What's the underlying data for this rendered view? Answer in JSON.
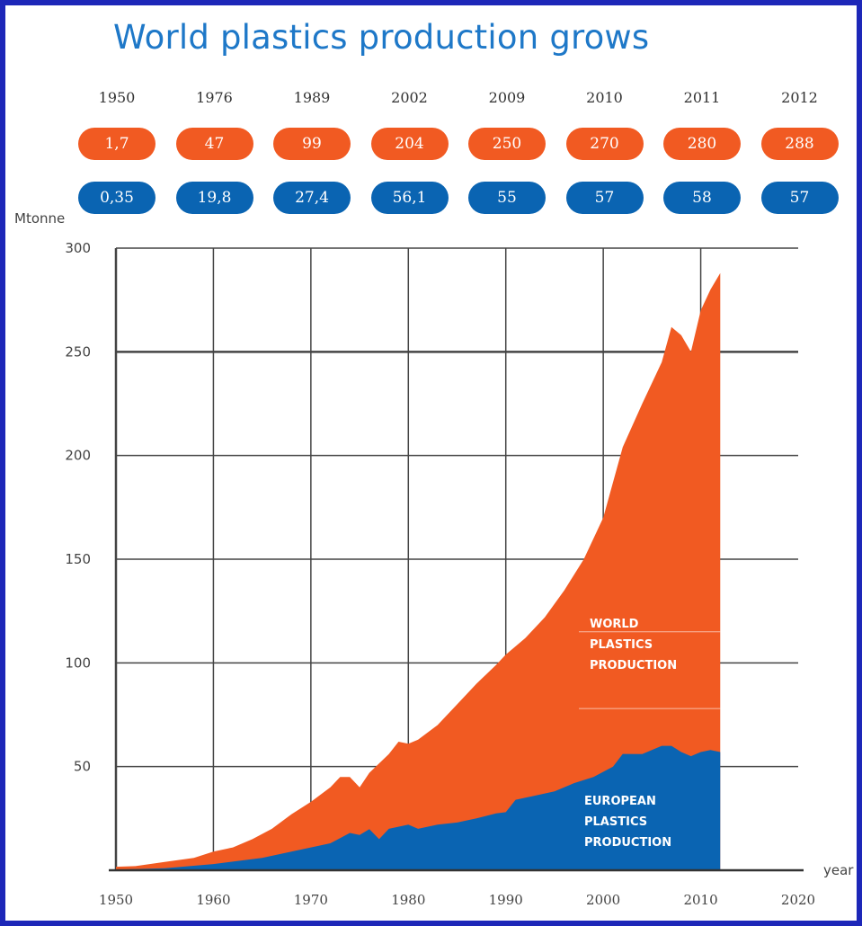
{
  "title": "World plastics production grows",
  "colors": {
    "world": "#f15a22",
    "europe": "#0a64b2",
    "frame": "#1d27b8",
    "title": "#1e78c8"
  },
  "summary": {
    "years": [
      "1950",
      "1976",
      "1989",
      "2002",
      "2009",
      "2010",
      "2011",
      "2012"
    ],
    "world": [
      "1,7",
      "47",
      "99",
      "204",
      "250",
      "270",
      "280",
      "288"
    ],
    "europe": [
      "0,35",
      "19,8",
      "27,4",
      "56,1",
      "55",
      "57",
      "58",
      "57"
    ]
  },
  "chart_data": {
    "type": "area",
    "ylabel": "Mtonne",
    "xlabel": "year",
    "xlim": [
      1950,
      2020
    ],
    "ylim": [
      0,
      300
    ],
    "xticks": [
      1950,
      1960,
      1970,
      1980,
      1990,
      2000,
      2010,
      2020
    ],
    "yticks": [
      50,
      100,
      150,
      200,
      250,
      300
    ],
    "series": [
      {
        "name": "WORLD PLASTICS PRODUCTION",
        "points": [
          [
            1950,
            1.7
          ],
          [
            1952,
            2
          ],
          [
            1955,
            4
          ],
          [
            1958,
            6
          ],
          [
            1960,
            9
          ],
          [
            1962,
            11
          ],
          [
            1964,
            15
          ],
          [
            1966,
            20
          ],
          [
            1968,
            27
          ],
          [
            1970,
            33
          ],
          [
            1972,
            40
          ],
          [
            1973,
            45
          ],
          [
            1974,
            45
          ],
          [
            1975,
            40
          ],
          [
            1976,
            47
          ],
          [
            1978,
            56
          ],
          [
            1979,
            62
          ],
          [
            1980,
            61
          ],
          [
            1981,
            63
          ],
          [
            1983,
            70
          ],
          [
            1985,
            80
          ],
          [
            1987,
            90
          ],
          [
            1989,
            99
          ],
          [
            1990,
            104
          ],
          [
            1992,
            112
          ],
          [
            1994,
            122
          ],
          [
            1996,
            135
          ],
          [
            1998,
            150
          ],
          [
            2000,
            170
          ],
          [
            2002,
            204
          ],
          [
            2004,
            225
          ],
          [
            2006,
            245
          ],
          [
            2007,
            262
          ],
          [
            2008,
            258
          ],
          [
            2009,
            250
          ],
          [
            2010,
            270
          ],
          [
            2011,
            280
          ],
          [
            2012,
            288
          ]
        ]
      },
      {
        "name": "EUROPEAN PLASTICS PRODUCTION",
        "points": [
          [
            1950,
            0.35
          ],
          [
            1955,
            1
          ],
          [
            1960,
            3
          ],
          [
            1965,
            6
          ],
          [
            1968,
            9
          ],
          [
            1970,
            11
          ],
          [
            1972,
            13
          ],
          [
            1974,
            18
          ],
          [
            1975,
            17
          ],
          [
            1976,
            19.8
          ],
          [
            1977,
            15
          ],
          [
            1978,
            20
          ],
          [
            1980,
            22
          ],
          [
            1981,
            20
          ],
          [
            1983,
            22
          ],
          [
            1985,
            23
          ],
          [
            1987,
            25
          ],
          [
            1989,
            27.4
          ],
          [
            1990,
            28
          ],
          [
            1991,
            34
          ],
          [
            1993,
            36
          ],
          [
            1995,
            38
          ],
          [
            1997,
            42
          ],
          [
            1999,
            45
          ],
          [
            2001,
            50
          ],
          [
            2002,
            56.1
          ],
          [
            2004,
            56
          ],
          [
            2006,
            60
          ],
          [
            2007,
            60
          ],
          [
            2008,
            57
          ],
          [
            2009,
            55
          ],
          [
            2010,
            57
          ],
          [
            2011,
            58
          ],
          [
            2012,
            57
          ]
        ]
      }
    ],
    "annotations": {
      "world_label": [
        "WORLD",
        "PLASTICS",
        "PRODUCTION"
      ],
      "europe_label": [
        "EUROPEAN",
        "PLASTICS",
        "PRODUCTION"
      ]
    }
  }
}
